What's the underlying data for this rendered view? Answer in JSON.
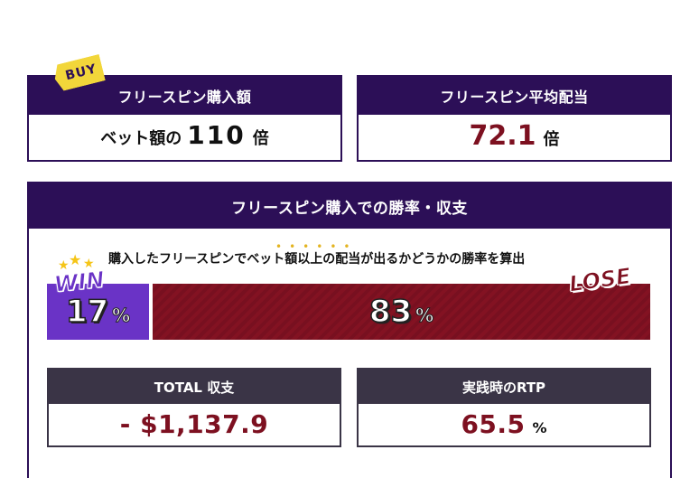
{
  "buy_badge": "BUY",
  "buy_card": {
    "title": "フリースピン購入額",
    "prefix": "ベット額の",
    "value": "110",
    "unit": "倍"
  },
  "avg_card": {
    "title": "フリースピン平均配当",
    "value": "72.1",
    "unit": "倍"
  },
  "section": {
    "title": "フリースピン購入での勝率・収支",
    "description": "購入したフリースピンでベット額以上の配当が出るかどうかの勝率を算出",
    "emphasis_dots": "••••••"
  },
  "win_lose": {
    "win_label": "WIN",
    "lose_label": "LOSE",
    "win_percent": 17,
    "lose_percent": 83,
    "win_text": "17",
    "lose_text": "83",
    "percent_sign": "%",
    "win_color": "#6a33c6",
    "lose_color": "#831222"
  },
  "total_card": {
    "title": "TOTAL 収支",
    "value": "- $1,137.9"
  },
  "rtp_card": {
    "title": "実践時のRTP",
    "value": "65.5",
    "unit": "%"
  },
  "colors": {
    "header_purple": "#2c0f57",
    "sub_header_gray": "#3a3446",
    "value_red": "#7d1020",
    "badge_yellow": "#f2d63a"
  },
  "icons": [
    "star-icon"
  ]
}
